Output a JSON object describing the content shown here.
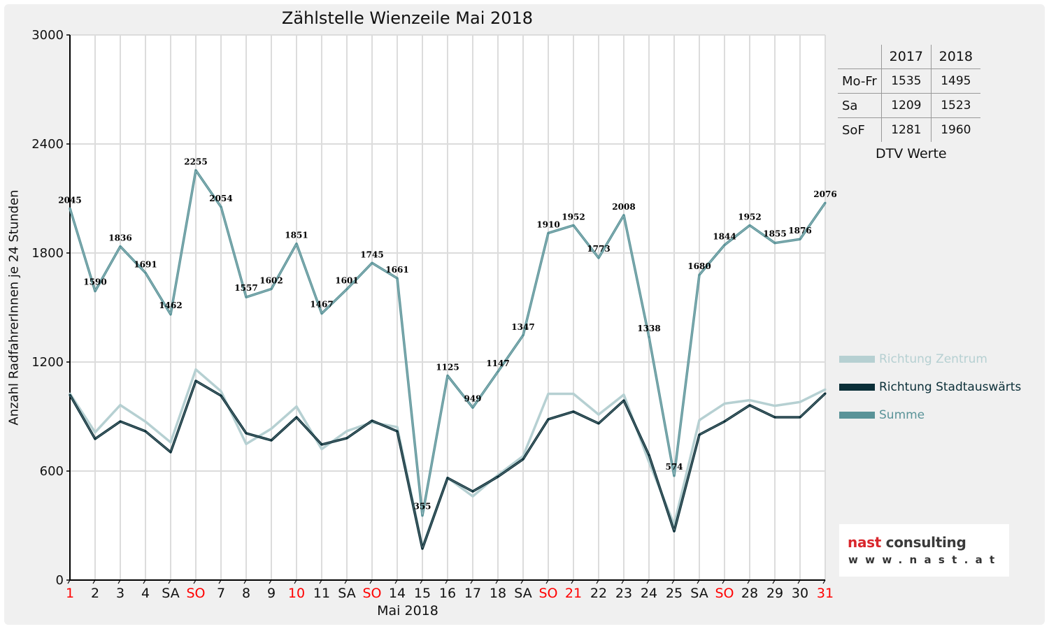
{
  "chart_data": {
    "type": "line",
    "title": "Zählstelle Wienzeile Mai 2018",
    "xlabel": "Mai 2018",
    "ylabel": "Anzahl RadfahrerInnen je 24 Stunden",
    "ylim": [
      0,
      3000
    ],
    "yticks": [
      "0",
      "600",
      "1200",
      "1800",
      "2400",
      "3000"
    ],
    "grid": true,
    "legend_position": "right",
    "x_labels": [
      "1",
      "2",
      "3",
      "4",
      "SA",
      "SO",
      "7",
      "8",
      "9",
      "10",
      "11",
      "SA",
      "SO",
      "14",
      "15",
      "16",
      "17",
      "18",
      "SA",
      "SO",
      "21",
      "22",
      "23",
      "24",
      "25",
      "SA",
      "SO",
      "28",
      "29",
      "30",
      "31"
    ],
    "x_label_red": [
      true,
      false,
      false,
      false,
      false,
      true,
      false,
      false,
      false,
      true,
      false,
      false,
      true,
      false,
      false,
      false,
      false,
      false,
      false,
      true,
      true,
      false,
      false,
      false,
      false,
      false,
      true,
      false,
      false,
      false,
      true
    ],
    "series": [
      {
        "name": "Richtung Zentrum",
        "color": "#b6d0d2",
        "values": [
          1026,
          813,
          963,
          872,
          758,
          1159,
          1039,
          749,
          833,
          955,
          721,
          820,
          868,
          842,
          182,
          563,
          461,
          578,
          682,
          1025,
          1025,
          911,
          1020,
          650,
          305,
          880,
          971,
          990,
          959,
          980,
          1049
        ]
      },
      {
        "name": "Richtung Stadtauswärts",
        "color": "#0b2f38",
        "values": [
          1019,
          777,
          873,
          819,
          704,
          1096,
          1015,
          808,
          769,
          896,
          746,
          781,
          877,
          819,
          173,
          562,
          488,
          569,
          665,
          885,
          927,
          862,
          988,
          688,
          269,
          800,
          873,
          962,
          896,
          896,
          1027
        ]
      },
      {
        "name": "Summe",
        "color": "#5a9398",
        "values": [
          2045,
          1590,
          1836,
          1691,
          1462,
          2255,
          2054,
          1557,
          1602,
          1851,
          1467,
          1601,
          1745,
          1661,
          355,
          1125,
          949,
          1147,
          1347,
          1910,
          1952,
          1773,
          2008,
          1338,
          574,
          1680,
          1844,
          1952,
          1855,
          1876,
          2076
        ],
        "data_labels": [
          "2045",
          "1590",
          "1836",
          "1691",
          "1462",
          "2255",
          "2054",
          "1557",
          "1602",
          "1851",
          "1467",
          "1601",
          "1745",
          "1661",
          "355",
          "1125",
          "949",
          "1147",
          "1347",
          "1910",
          "1952",
          "1773",
          "2008",
          "1338",
          "574",
          "1680",
          "1844",
          "1952",
          "1855",
          "1876",
          "2076"
        ]
      }
    ]
  },
  "dtv": {
    "caption": "DTV Werte",
    "headers": [
      "2017",
      "2018"
    ],
    "rows": [
      {
        "label": "Mo-Fr",
        "v2017": "1535",
        "v2018": "1495"
      },
      {
        "label": "Sa",
        "v2017": "1209",
        "v2018": "1523"
      },
      {
        "label": "SoF",
        "v2017": "1281",
        "v2018": "1960"
      }
    ]
  },
  "logo": {
    "line1_a": "nast",
    "line1_b": "consulting",
    "line2": "www.nast.at"
  },
  "colors": {
    "red": "#ff0000",
    "logo_red": "#d9262c",
    "logo_dark": "#3a3a3a"
  }
}
